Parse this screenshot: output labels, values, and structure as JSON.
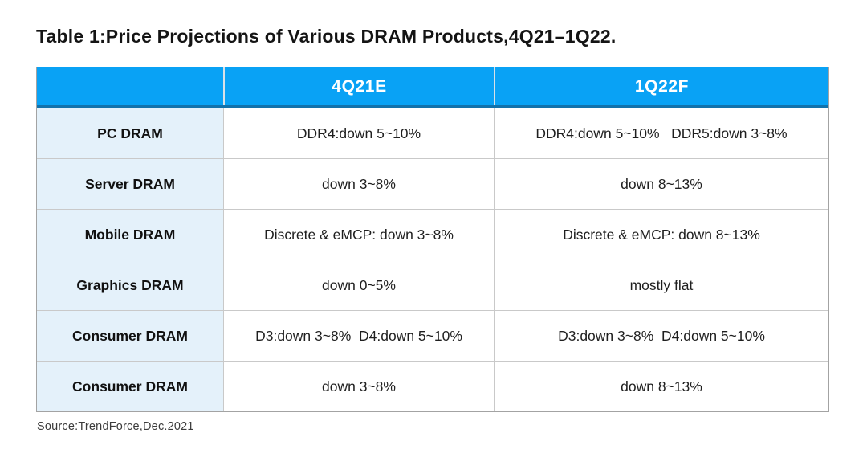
{
  "title": "Table 1:Price Projections of Various DRAM Products,4Q21–1Q22.",
  "source": "Source:TrendForce,Dec.2021",
  "colors": {
    "header_bg": "#09a2f5",
    "header_line": "#1272ab",
    "label_bg": "#e4f1fa"
  },
  "chart_data": {
    "type": "table",
    "title": "Price Projections of Various DRAM Products, 4Q21-1Q22",
    "columns": [
      "",
      "4Q21E",
      "1Q22F"
    ],
    "rows": [
      {
        "label": "PC DRAM",
        "values": [
          "DDR4:down 5~10%",
          "DDR4:down 5~10%   DDR5:down 3~8%"
        ]
      },
      {
        "label": "Server DRAM",
        "values": [
          "down 3~8%",
          "down 8~13%"
        ]
      },
      {
        "label": "Mobile DRAM",
        "values": [
          "Discrete & eMCP: down 3~8%",
          "Discrete & eMCP: down 8~13%"
        ]
      },
      {
        "label": "Graphics DRAM",
        "values": [
          "down 0~5%",
          "mostly flat"
        ]
      },
      {
        "label": "Consumer DRAM",
        "values": [
          "D3:down 3~8%  D4:down 5~10%",
          "D3:down 3~8%  D4:down 5~10%"
        ]
      },
      {
        "label": "Consumer DRAM",
        "values": [
          "down 3~8%",
          "down 8~13%"
        ]
      }
    ]
  }
}
